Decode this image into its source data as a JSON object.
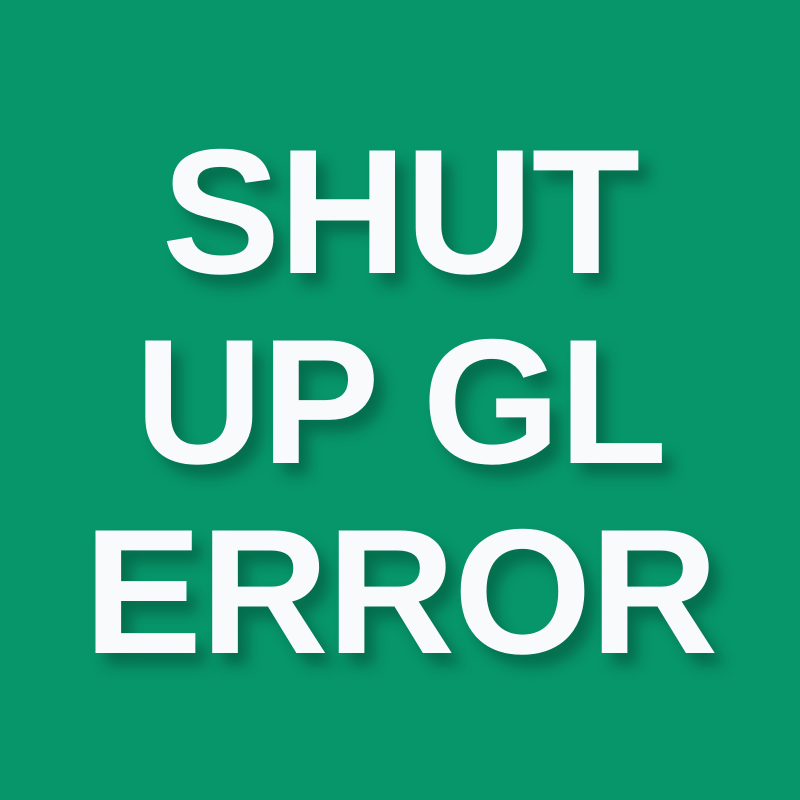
{
  "background_color": "#07966a",
  "text_color": "#f8fafc",
  "headline": {
    "lines": [
      "SHUT",
      "UP GL",
      "ERROR"
    ]
  }
}
